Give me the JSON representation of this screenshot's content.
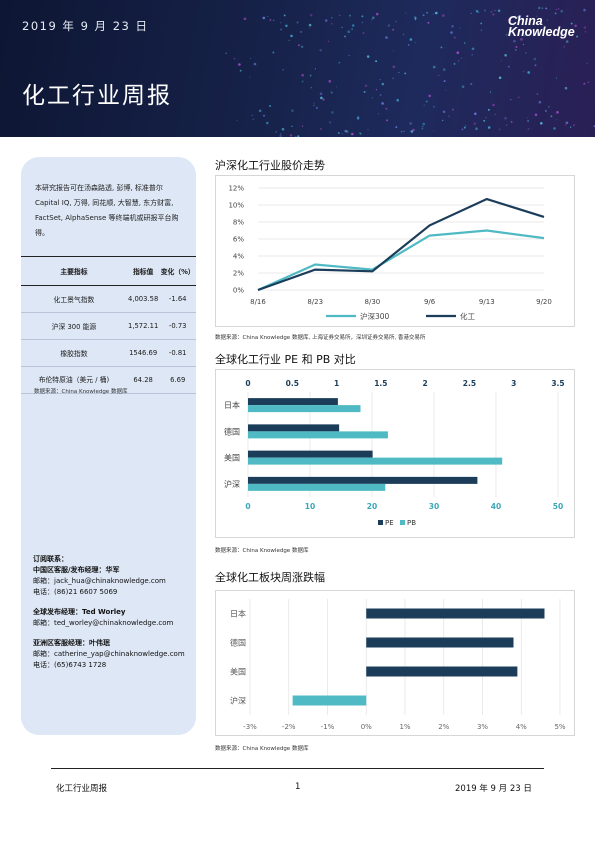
{
  "header": {
    "date": "2019 年 9 月 23 日",
    "title": "化工行业周报",
    "logo_line1": "China",
    "logo_line2": "Knowledge"
  },
  "sidebar": {
    "intro": "本研究报告可在汤森路透, 彭博, 标准普尔 Capital IQ, 万得, 同花顺, 大智慧, 东方财富, FactSet, AlphaSense 等终端机或研报平台购得。",
    "table_headers": [
      "主要指标",
      "指标值",
      "变化（%）"
    ],
    "table_rows": [
      {
        "name": "化工景气指数",
        "value": "4,003.58",
        "change": "-1.64"
      },
      {
        "name": "沪深 300 能源",
        "value": "1,572.11",
        "change": "-0.73"
      },
      {
        "name": "橡胶指数",
        "value": "1546.69",
        "change": "-0.81"
      },
      {
        "name": "布伦特原油（美元 / 桶)",
        "value": "64.28",
        "change": "6.69"
      }
    ],
    "source": "数据来源：China Knowledge 数据库",
    "contact": {
      "heading": "订阅联系：",
      "china_role": "中国区客服/发布经理：华军",
      "china_email": "邮箱：jack_hua@chinaknowledge.com",
      "china_phone": "电话：(86)21 6607 5069",
      "global_role": "全球发布经理：Ted Worley",
      "global_email": "邮箱：ted_worley@chinaknowledge.com",
      "asia_role": "亚洲区客服经理：叶伟珉",
      "asia_email": "邮箱：catherine_yap@chinaknowledge.com",
      "asia_phone": "电话：(65)6743 1728"
    }
  },
  "sections": {
    "trend_title": "沪深化工行业股价走势",
    "trend_source": "数据来源：China Knowledge 数据库, 上海证券交易所，深圳证券交易所, 香港交易所",
    "pe_title": "全球化工行业 PE 和 PB 对比",
    "pe_source": "数据来源：China Knowledge 数据库",
    "weekly_title": "全球化工板块周涨跌幅",
    "weekly_source": "数据来源：China Knowledge 数据库"
  },
  "footer": {
    "left": "化工行业周报",
    "page": "1",
    "right": "2019 年 9 月 23 日"
  },
  "colors": {
    "navy": "#1b3d5a",
    "teal": "#4fbac4"
  },
  "chart_data": [
    {
      "type": "line",
      "x": [
        "8/16",
        "8/23",
        "8/30",
        "9/6",
        "9/13",
        "9/20"
      ],
      "ylim": [
        0,
        12
      ],
      "yticks": [
        "0%",
        "2%",
        "4%",
        "6%",
        "8%",
        "10%",
        "12%"
      ],
      "series": [
        {
          "name": "沪深300",
          "color": "#4fbac4",
          "values": [
            0,
            3.0,
            2.4,
            6.4,
            7.0,
            6.1
          ]
        },
        {
          "name": "化工",
          "color": "#1b3d5a",
          "values": [
            0,
            2.4,
            2.2,
            7.6,
            10.7,
            8.6
          ]
        }
      ],
      "legend": "bottom"
    },
    {
      "type": "bar",
      "orientation": "horizontal",
      "categories": [
        "日本",
        "德国",
        "美国",
        "沪深"
      ],
      "series": [
        {
          "name": "PE",
          "color": "#1b3d5a",
          "axis": "bottom",
          "values": [
            14.5,
            14.7,
            20.1,
            37.0
          ]
        },
        {
          "name": "PB",
          "color": "#4fbac4",
          "axis": "top",
          "values": [
            1.27,
            1.58,
            2.87,
            1.55
          ]
        }
      ],
      "bottom_ticks": [
        "0",
        "10",
        "20",
        "30",
        "40",
        "50"
      ],
      "top_ticks": [
        "0",
        "0.5",
        "1",
        "1.5",
        "2",
        "2.5",
        "3",
        "3.5"
      ],
      "xlim_bottom": [
        0,
        50
      ],
      "xlim_top": [
        0,
        3.5
      ],
      "legend": "bottom"
    },
    {
      "type": "bar",
      "orientation": "horizontal",
      "categories": [
        "日本",
        "德国",
        "美国",
        "沪深"
      ],
      "values": [
        4.6,
        3.8,
        3.9,
        -1.9
      ],
      "colors": [
        "#1b3d5a",
        "#1b3d5a",
        "#1b3d5a",
        "#4fbac4"
      ],
      "xticks": [
        "-3%",
        "-2%",
        "-1%",
        "0%",
        "1%",
        "2%",
        "3%",
        "4%",
        "5%"
      ],
      "xlim": [
        -3,
        5
      ]
    }
  ]
}
